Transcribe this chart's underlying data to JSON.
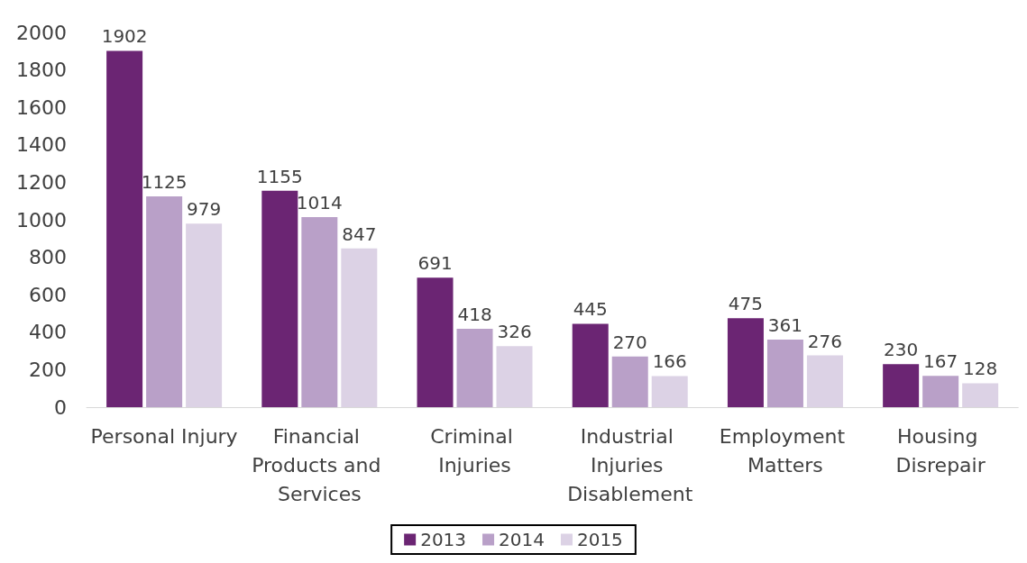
{
  "chart_data": {
    "type": "bar",
    "categories": [
      "Personal Injury",
      "Financial Products and Services",
      "Criminal Injuries",
      "Industrial Injuries Disablement",
      "Employment Matters",
      "Housing Disrepair"
    ],
    "series": [
      {
        "name": "2013",
        "color": "#6b2573",
        "values": [
          1902,
          1155,
          691,
          445,
          475,
          230
        ]
      },
      {
        "name": "2014",
        "color": "#b9a0c8",
        "values": [
          1125,
          1014,
          418,
          270,
          361,
          167
        ]
      },
      {
        "name": "2015",
        "color": "#dcd2e5",
        "values": [
          979,
          847,
          326,
          166,
          276,
          128
        ]
      }
    ],
    "ylim": [
      0,
      2000
    ],
    "yticks": [
      0,
      200,
      400,
      600,
      800,
      1000,
      1200,
      1400,
      1600,
      1800,
      2000
    ],
    "grid": false,
    "legend": "bottom",
    "data_labels": true
  }
}
